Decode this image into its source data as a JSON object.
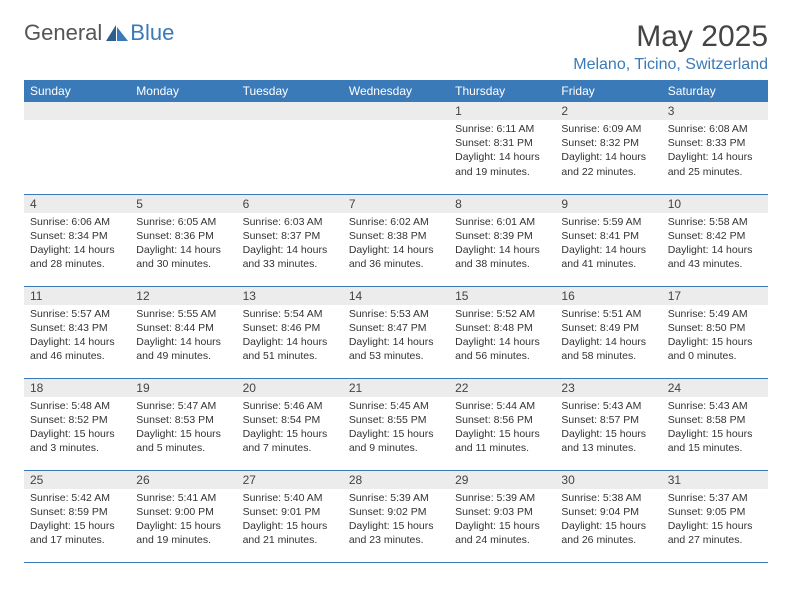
{
  "logo": {
    "part1": "General",
    "part2": "Blue"
  },
  "title": "May 2025",
  "location": "Melano, Ticino, Switzerland",
  "headers": [
    "Sunday",
    "Monday",
    "Tuesday",
    "Wednesday",
    "Thursday",
    "Friday",
    "Saturday"
  ],
  "colors": {
    "brand": "#3a7ab8",
    "header_bg": "#3a7ab8",
    "row_bg": "#ececec",
    "text": "#333"
  },
  "weeks": [
    [
      null,
      null,
      null,
      null,
      {
        "n": "1",
        "sr": "6:11 AM",
        "ss": "8:31 PM",
        "dl": "14 hours and 19 minutes."
      },
      {
        "n": "2",
        "sr": "6:09 AM",
        "ss": "8:32 PM",
        "dl": "14 hours and 22 minutes."
      },
      {
        "n": "3",
        "sr": "6:08 AM",
        "ss": "8:33 PM",
        "dl": "14 hours and 25 minutes."
      }
    ],
    [
      {
        "n": "4",
        "sr": "6:06 AM",
        "ss": "8:34 PM",
        "dl": "14 hours and 28 minutes."
      },
      {
        "n": "5",
        "sr": "6:05 AM",
        "ss": "8:36 PM",
        "dl": "14 hours and 30 minutes."
      },
      {
        "n": "6",
        "sr": "6:03 AM",
        "ss": "8:37 PM",
        "dl": "14 hours and 33 minutes."
      },
      {
        "n": "7",
        "sr": "6:02 AM",
        "ss": "8:38 PM",
        "dl": "14 hours and 36 minutes."
      },
      {
        "n": "8",
        "sr": "6:01 AM",
        "ss": "8:39 PM",
        "dl": "14 hours and 38 minutes."
      },
      {
        "n": "9",
        "sr": "5:59 AM",
        "ss": "8:41 PM",
        "dl": "14 hours and 41 minutes."
      },
      {
        "n": "10",
        "sr": "5:58 AM",
        "ss": "8:42 PM",
        "dl": "14 hours and 43 minutes."
      }
    ],
    [
      {
        "n": "11",
        "sr": "5:57 AM",
        "ss": "8:43 PM",
        "dl": "14 hours and 46 minutes."
      },
      {
        "n": "12",
        "sr": "5:55 AM",
        "ss": "8:44 PM",
        "dl": "14 hours and 49 minutes."
      },
      {
        "n": "13",
        "sr": "5:54 AM",
        "ss": "8:46 PM",
        "dl": "14 hours and 51 minutes."
      },
      {
        "n": "14",
        "sr": "5:53 AM",
        "ss": "8:47 PM",
        "dl": "14 hours and 53 minutes."
      },
      {
        "n": "15",
        "sr": "5:52 AM",
        "ss": "8:48 PM",
        "dl": "14 hours and 56 minutes."
      },
      {
        "n": "16",
        "sr": "5:51 AM",
        "ss": "8:49 PM",
        "dl": "14 hours and 58 minutes."
      },
      {
        "n": "17",
        "sr": "5:49 AM",
        "ss": "8:50 PM",
        "dl": "15 hours and 0 minutes."
      }
    ],
    [
      {
        "n": "18",
        "sr": "5:48 AM",
        "ss": "8:52 PM",
        "dl": "15 hours and 3 minutes."
      },
      {
        "n": "19",
        "sr": "5:47 AM",
        "ss": "8:53 PM",
        "dl": "15 hours and 5 minutes."
      },
      {
        "n": "20",
        "sr": "5:46 AM",
        "ss": "8:54 PM",
        "dl": "15 hours and 7 minutes."
      },
      {
        "n": "21",
        "sr": "5:45 AM",
        "ss": "8:55 PM",
        "dl": "15 hours and 9 minutes."
      },
      {
        "n": "22",
        "sr": "5:44 AM",
        "ss": "8:56 PM",
        "dl": "15 hours and 11 minutes."
      },
      {
        "n": "23",
        "sr": "5:43 AM",
        "ss": "8:57 PM",
        "dl": "15 hours and 13 minutes."
      },
      {
        "n": "24",
        "sr": "5:43 AM",
        "ss": "8:58 PM",
        "dl": "15 hours and 15 minutes."
      }
    ],
    [
      {
        "n": "25",
        "sr": "5:42 AM",
        "ss": "8:59 PM",
        "dl": "15 hours and 17 minutes."
      },
      {
        "n": "26",
        "sr": "5:41 AM",
        "ss": "9:00 PM",
        "dl": "15 hours and 19 minutes."
      },
      {
        "n": "27",
        "sr": "5:40 AM",
        "ss": "9:01 PM",
        "dl": "15 hours and 21 minutes."
      },
      {
        "n": "28",
        "sr": "5:39 AM",
        "ss": "9:02 PM",
        "dl": "15 hours and 23 minutes."
      },
      {
        "n": "29",
        "sr": "5:39 AM",
        "ss": "9:03 PM",
        "dl": "15 hours and 24 minutes."
      },
      {
        "n": "30",
        "sr": "5:38 AM",
        "ss": "9:04 PM",
        "dl": "15 hours and 26 minutes."
      },
      {
        "n": "31",
        "sr": "5:37 AM",
        "ss": "9:05 PM",
        "dl": "15 hours and 27 minutes."
      }
    ]
  ],
  "labels": {
    "sunrise": "Sunrise: ",
    "sunset": "Sunset: ",
    "daylight": "Daylight: "
  }
}
